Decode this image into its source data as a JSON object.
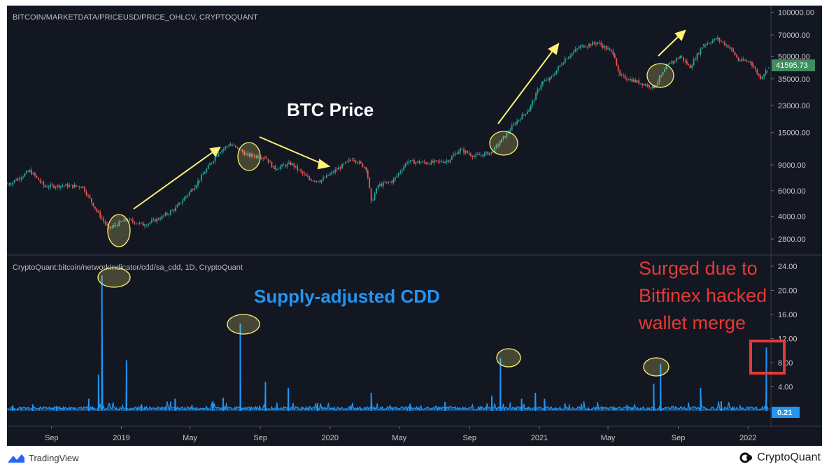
{
  "chart_data": [
    {
      "type": "line",
      "source_label": "BITCOIN/MARKETDATA/PRICEUSD/PRICE_OHLCV, CRYPTOQUANT",
      "annotation": "BTC Price",
      "y_scale": "log",
      "y_ticks": [
        "100000.00",
        "70000.00",
        "50000.00",
        "35000.00",
        "23000.00",
        "15000.00",
        "9000.00",
        "6000.00",
        "4000.00",
        "2800.00"
      ],
      "last_value": "41595.73",
      "x": [
        "2018-06-20",
        "2018-07-25",
        "2018-08-20",
        "2018-09-20",
        "2018-10-25",
        "2018-11-20",
        "2018-12-10",
        "2019-01-10",
        "2019-02-10",
        "2019-03-10",
        "2019-04-05",
        "2019-05-10",
        "2019-06-20",
        "2019-07-10",
        "2019-08-10",
        "2019-09-10",
        "2019-09-25",
        "2019-10-25",
        "2019-11-25",
        "2019-12-15",
        "2020-01-15",
        "2020-02-10",
        "2020-03-05",
        "2020-03-13",
        "2020-03-25",
        "2020-04-20",
        "2020-05-15",
        "2020-06-20",
        "2020-07-25",
        "2020-08-15",
        "2020-09-10",
        "2020-10-10",
        "2020-10-25",
        "2020-11-20",
        "2020-12-15",
        "2021-01-05",
        "2021-01-20",
        "2021-02-15",
        "2021-03-13",
        "2021-04-13",
        "2021-05-12",
        "2021-05-20",
        "2021-06-20",
        "2021-07-20",
        "2021-08-15",
        "2021-09-05",
        "2021-09-21",
        "2021-10-15",
        "2021-11-08",
        "2021-12-01",
        "2021-12-15",
        "2022-01-05",
        "2022-01-22",
        "2022-02-06"
      ],
      "series": [
        {
          "values": [
            6700,
            8200,
            6400,
            6500,
            6400,
            4300,
            3300,
            3800,
            3500,
            3900,
            4500,
            6500,
            11000,
            12500,
            10500,
            10200,
            8500,
            9200,
            7200,
            7000,
            8500,
            10000,
            8500,
            5000,
            6500,
            7000,
            9500,
            9300,
            9600,
            11500,
            10300,
            11000,
            13000,
            17500,
            22000,
            33000,
            35000,
            48000,
            58000,
            62000,
            52000,
            37000,
            33500,
            30500,
            44000,
            50000,
            42000,
            60000,
            66000,
            57000,
            47000,
            46000,
            35500,
            41595.73
          ]
        }
      ]
    },
    {
      "type": "line",
      "source_label": "CryptoQuant:bitcoin/networkIndicator/cdd/sa_cdd, 1D, CryptoQuant",
      "annotation": "Supply-adjusted CDD",
      "note": [
        "Surged due to",
        "Bitfinex hacked",
        "wallet merge"
      ],
      "y_ticks": [
        "24.00",
        "20.00",
        "16.00",
        "12.00",
        "8.00",
        "4.00"
      ],
      "last_value": "0.21",
      "spikes": [
        {
          "x": "2018-06-25",
          "value": 0.9
        },
        {
          "x": "2018-07-30",
          "value": 1.1
        },
        {
          "x": "2018-09-10",
          "value": 0.8
        },
        {
          "x": "2018-11-05",
          "value": 2.0
        },
        {
          "x": "2018-11-22",
          "value": 6.0
        },
        {
          "x": "2018-11-28",
          "value": 22.5
        },
        {
          "x": "2019-01-10",
          "value": 8.4
        },
        {
          "x": "2019-02-05",
          "value": 1.1
        },
        {
          "x": "2019-04-05",
          "value": 2.0
        },
        {
          "x": "2019-06-10",
          "value": 1.6
        },
        {
          "x": "2019-06-28",
          "value": 2.2
        },
        {
          "x": "2019-07-28",
          "value": 14.5
        },
        {
          "x": "2019-09-10",
          "value": 4.8
        },
        {
          "x": "2019-10-20",
          "value": 3.8
        },
        {
          "x": "2019-12-10",
          "value": 1.3
        },
        {
          "x": "2020-03-13",
          "value": 3.0
        },
        {
          "x": "2020-05-20",
          "value": 1.2
        },
        {
          "x": "2020-07-20",
          "value": 1.5
        },
        {
          "x": "2020-10-10",
          "value": 2.5
        },
        {
          "x": "2020-10-25",
          "value": 8.8
        },
        {
          "x": "2020-12-01",
          "value": 2.0
        },
        {
          "x": "2020-12-25",
          "value": 3.0
        },
        {
          "x": "2021-01-10",
          "value": 2.0
        },
        {
          "x": "2021-07-20",
          "value": 4.5
        },
        {
          "x": "2021-08-01",
          "value": 7.8
        },
        {
          "x": "2021-10-10",
          "value": 3.8
        },
        {
          "x": "2021-11-15",
          "value": 1.6
        },
        {
          "x": "2022-02-02",
          "value": 10.5
        }
      ]
    }
  ],
  "x_axis_ticks": [
    {
      "label": "Sep",
      "date": "2018-09-01"
    },
    {
      "label": "2019",
      "date": "2019-01-01"
    },
    {
      "label": "May",
      "date": "2019-05-01"
    },
    {
      "label": "Sep",
      "date": "2019-09-01"
    },
    {
      "label": "2020",
      "date": "2020-01-01"
    },
    {
      "label": "May",
      "date": "2020-05-01"
    },
    {
      "label": "Sep",
      "date": "2020-09-01"
    },
    {
      "label": "2021",
      "date": "2021-01-01"
    },
    {
      "label": "May",
      "date": "2021-05-01"
    },
    {
      "label": "Sep",
      "date": "2021-09-01"
    },
    {
      "label": "2022",
      "date": "2022-01-01"
    }
  ],
  "footer": {
    "left_brand": "TradingView",
    "right_brand": "CryptoQuant"
  },
  "colors": {
    "background": "#131722",
    "up": "#26a69a",
    "down": "#ef5350",
    "cdd_line": "#2196f3",
    "price_label_bg": "#3f8e60",
    "cdd_label_bg": "#2196f3",
    "highlight": "#fff176",
    "annotation_price": "#ffffff",
    "annotation_cdd": "#2196f3",
    "note": "#e53935"
  }
}
